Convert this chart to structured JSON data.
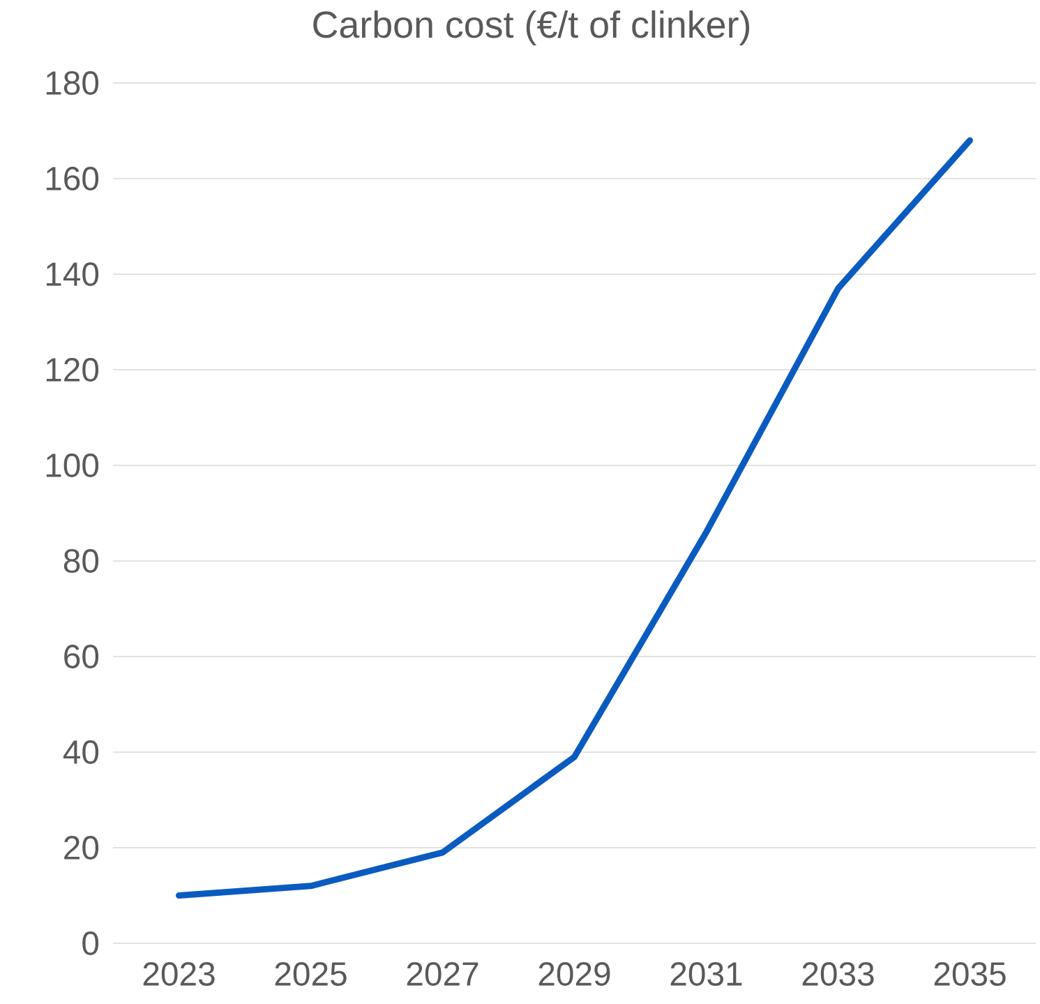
{
  "chart_data": {
    "type": "line",
    "title": "Carbon cost (€/t of clinker)",
    "categories": [
      "2023",
      "2025",
      "2027",
      "2029",
      "2031",
      "2033",
      "2035"
    ],
    "series": [
      {
        "color": "#0a5bbf",
        "values": [
          10,
          12,
          19,
          39,
          86,
          137,
          168
        ]
      }
    ],
    "ylim": [
      0,
      180
    ],
    "yticks": [
      0,
      20,
      40,
      60,
      80,
      100,
      120,
      140,
      160,
      180
    ],
    "grid": "y",
    "marker": "none",
    "line_style": "solid"
  }
}
